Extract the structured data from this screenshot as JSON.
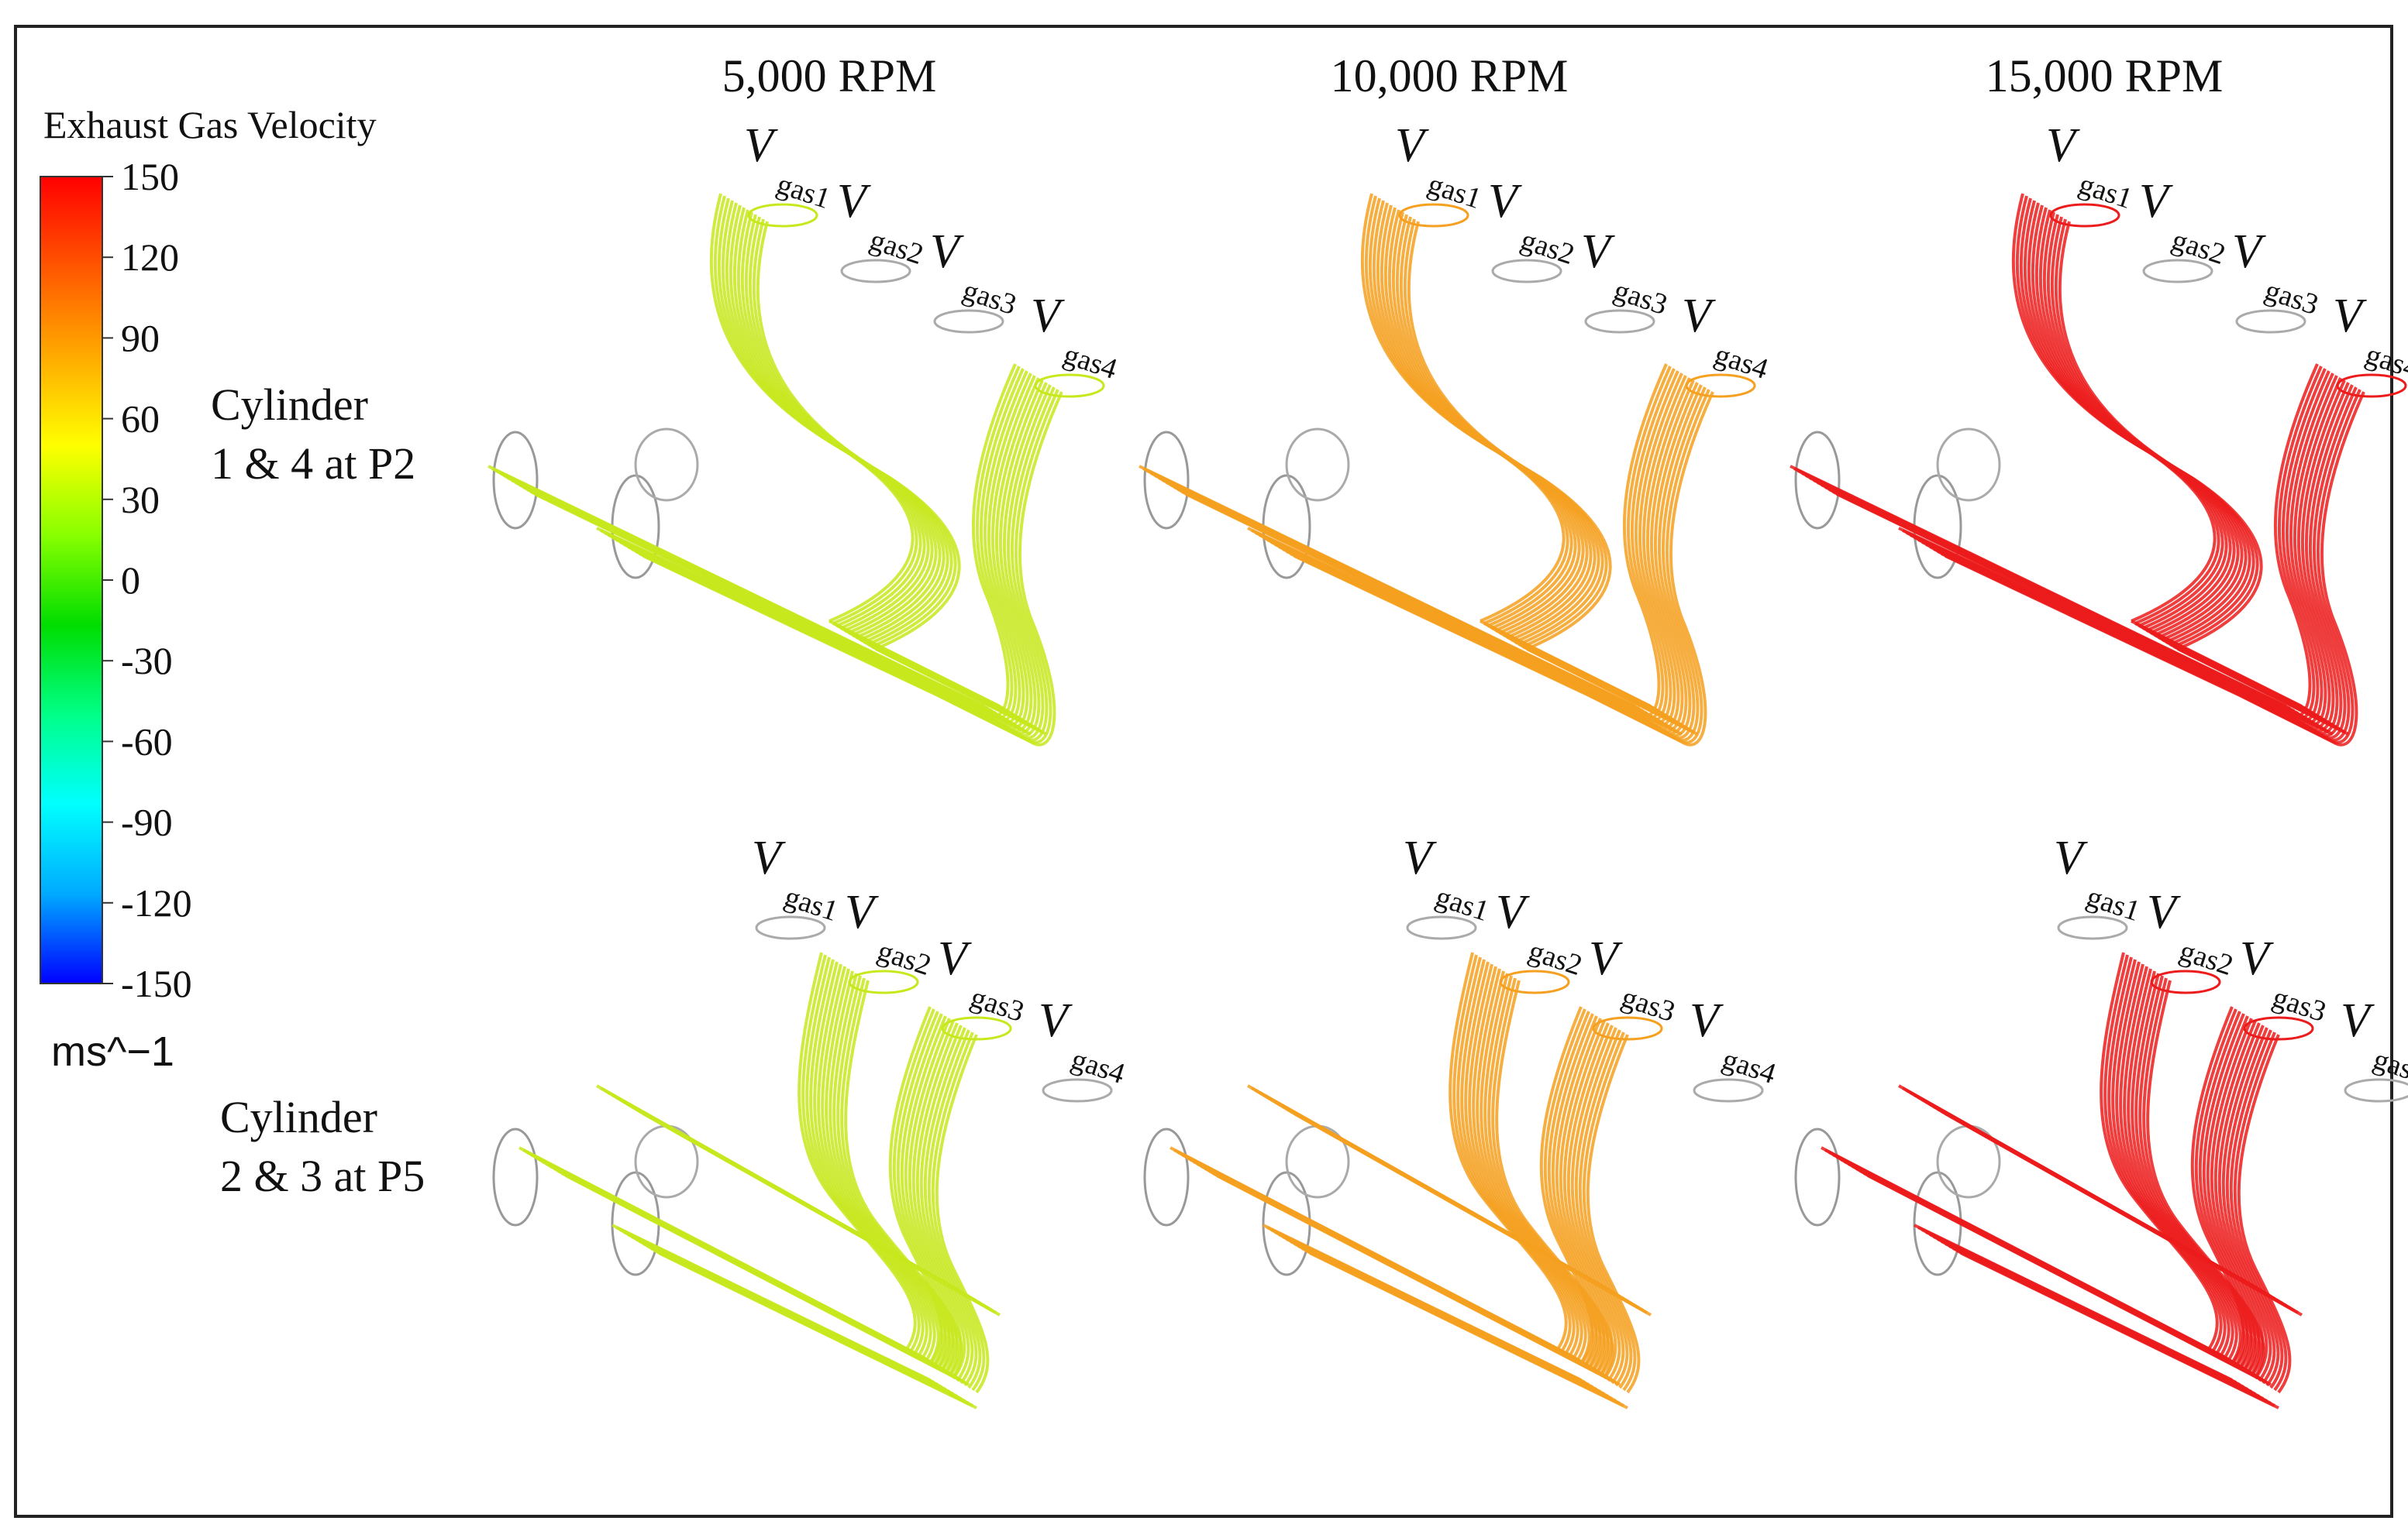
{
  "legend": {
    "title": "Exhaust Gas Velocity",
    "unit": "ms^−1",
    "ticks": [
      "150",
      "120",
      "90",
      "60",
      "30",
      "0",
      "-30",
      "-60",
      "-90",
      "-120",
      "-150"
    ],
    "range": [
      -150,
      150
    ],
    "colormap": [
      "#0000ff",
      "#00aaff",
      "#00ffff",
      "#00ff88",
      "#00dd00",
      "#88ff00",
      "#ffff00",
      "#ffaa00",
      "#ff5500",
      "#ff0000"
    ]
  },
  "columns": [
    {
      "label": "5,000 RPM",
      "flow_color": "#c8e81e"
    },
    {
      "label": "10,000 RPM",
      "flow_color": "#f5a020"
    },
    {
      "label": "15,000 RPM",
      "flow_color": "#ec1c1c"
    }
  ],
  "rows": [
    {
      "line1": "Cylinder",
      "line2": "1 & 4 at P2"
    },
    {
      "line1": "Cylinder",
      "line2": "2 & 3 at P5"
    }
  ],
  "port_labels": {
    "symbol": "V",
    "subscripts": [
      "gas1",
      "gas2",
      "gas3",
      "gas4"
    ]
  }
}
